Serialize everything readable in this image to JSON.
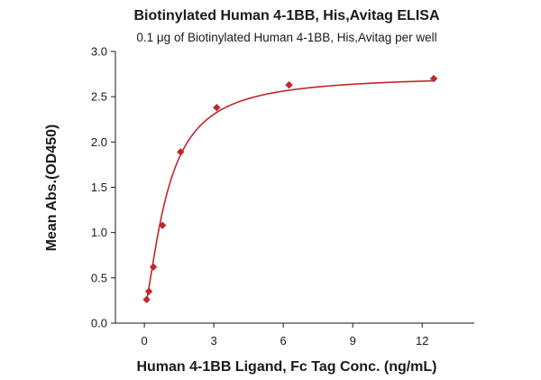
{
  "chart_data": {
    "type": "scatter",
    "title": "Biotinylated Human 4-1BB, His,Avitag ELISA",
    "subtitle": "0.1 μg of Biotinylated Human 4-1BB, His,Avitag per well",
    "xlabel": "Human 4-1BB Ligand, Fc Tag Conc. (ng/mL)",
    "ylabel": "Mean Abs.(OD450)",
    "xlim": [
      -1.25,
      14.25
    ],
    "ylim": [
      0,
      3.0
    ],
    "xticks": [
      0,
      3,
      6,
      9,
      12
    ],
    "yticks": [
      0.0,
      0.5,
      1.0,
      1.5,
      2.0,
      2.5,
      3.0
    ],
    "xtick_labels": [
      "0",
      "3",
      "6",
      "9",
      "12"
    ],
    "ytick_labels": [
      "0.0",
      "0.5",
      "1.0",
      "1.5",
      "2.0",
      "2.5",
      "3.0"
    ],
    "grid": false,
    "series": [
      {
        "marker": "diamond",
        "color": "#c0282d",
        "fit": "four-parameter logistic curve",
        "x": [
          0.098,
          0.195,
          0.391,
          0.781,
          1.563,
          3.125,
          6.25,
          12.5
        ],
        "y": [
          0.26,
          0.35,
          0.62,
          1.08,
          1.89,
          2.38,
          2.63,
          2.7
        ]
      }
    ]
  }
}
